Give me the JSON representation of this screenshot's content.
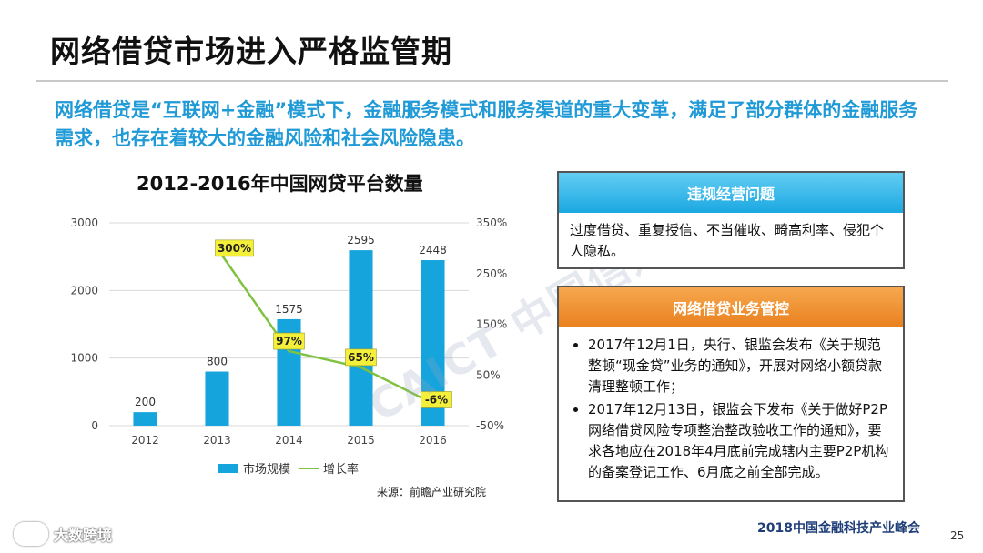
{
  "page_title": "网络借贷市场进入严格监管期",
  "subtitle": "网络借贷是“互联网+金融”模式下，金融服务模式和服务渠道的重大变革，满足了部分群体的金融服务需求，也存在着较大的金融风险和社会风险隐患。",
  "chart_data": {
    "type": "bar",
    "title": "2012-2016年中国网贷平台数量",
    "categories": [
      "2012",
      "2013",
      "2014",
      "2015",
      "2016"
    ],
    "series": [
      {
        "name": "市场规模",
        "type": "bar",
        "axis": "left",
        "values": [
          200,
          800,
          1575,
          2595,
          2448
        ],
        "color": "#16a4dc"
      },
      {
        "name": "增长率",
        "type": "line",
        "axis": "right",
        "values": [
          null,
          300,
          97,
          65,
          -6
        ],
        "labels": [
          "",
          "300%",
          "97%",
          "65%",
          "-6%"
        ],
        "color": "#7fc241"
      }
    ],
    "left_axis": {
      "min": 0,
      "max": 3000,
      "ticks": [
        "0",
        "1000",
        "2000",
        "3000"
      ]
    },
    "right_axis": {
      "min": -50,
      "max": 350,
      "ticks": [
        "-50%",
        "50%",
        "150%",
        "250%",
        "350%"
      ]
    },
    "grid": true,
    "legend_position": "bottom"
  },
  "source": "来源：前瞻产业研究院",
  "watermark": "CAICT 中国信通院",
  "panel1": {
    "header": "违规经营问题",
    "body": "过度借贷、重复授信、不当催收、畸高利率、侵犯个人隐私。"
  },
  "panel2": {
    "header": "网络借贷业务管控",
    "items": [
      "2017年12月1日，央行、银监会发布《关于规范整顿“现金贷”业务的通知》，开展对网络小额贷款清理整顿工作；",
      "2017年12月13日，银监会下发布《关于做好P2P网络借贷风险专项整治整改验收工作的通知》，要求各地应在2018年4月底前完成辖内主要P2P机构的备案登记工作、6月底之前全部完成。"
    ]
  },
  "footer": {
    "logo_text": "大数跨境",
    "event": "2018中国金融科技产业峰会",
    "page_number": "25"
  },
  "colors": {
    "accent_blue": "#1f9ad6",
    "bar": "#16a4dc",
    "line": "#7fc241",
    "panel2": "#e9801e",
    "label_bg": "#f4f03a"
  }
}
